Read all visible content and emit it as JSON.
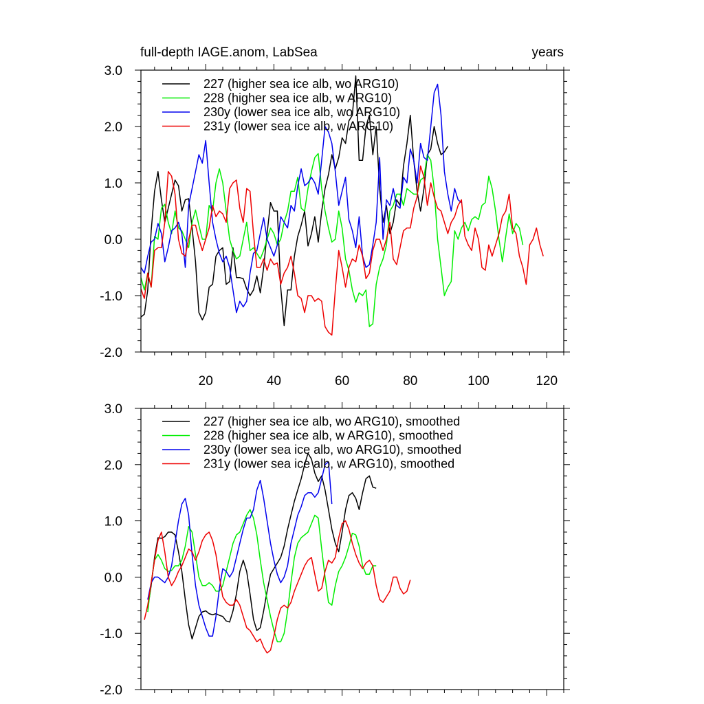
{
  "colors": {
    "s227": "#000000",
    "s228": "#00ee00",
    "s230": "#0000ee",
    "s231": "#ee0000"
  },
  "chart_data": [
    {
      "type": "line",
      "title_left": "full-depth IAGE.anom, LabSea",
      "title_right": "years",
      "xlim": [
        1,
        125
      ],
      "ylim": [
        -2.0,
        3.0
      ],
      "xticks": [
        20,
        40,
        60,
        80,
        100,
        120
      ],
      "xtick_labels": [
        "20",
        "40",
        "60",
        "80",
        "100",
        "120"
      ],
      "yticks": [
        -2,
        -1,
        0,
        1,
        2,
        3
      ],
      "ytick_labels": [
        "-2.0",
        "-1.0",
        "0.0",
        "1.0",
        "2.0",
        "3.0"
      ],
      "series": [
        {
          "name": "227 (higher sea ice alb, wo ARG10)",
          "color_key": "s227",
          "x_start": 1,
          "values": [
            -1.38,
            -1.33,
            -0.9,
            0.15,
            0.85,
            1.2,
            0.7,
            0.3,
            0.55,
            0.8,
            1.05,
            0.95,
            0.5,
            0.7,
            0.72,
            0.2,
            -0.4,
            -1.3,
            -1.43,
            -1.3,
            -0.85,
            -0.8,
            -0.3,
            -0.2,
            -0.15,
            -0.8,
            -0.75,
            -0.15,
            -0.68,
            -0.68,
            -0.7,
            -0.88,
            -1.0,
            -0.9,
            -0.65,
            -0.95,
            -0.5,
            0.1,
            0.65,
            0.5,
            0.5,
            -0.85,
            -1.53,
            -0.9,
            -0.9,
            -0.3,
            0.05,
            0.25,
            0.5,
            -0.12,
            0.1,
            0.4,
            -0.05,
            0.5,
            0.9,
            1.15,
            1.5,
            1.25,
            1.45,
            1.8,
            1.7,
            2.1,
            2.2,
            2.9,
            1.4,
            1.4,
            2.0,
            2.2,
            1.5,
            2.0,
            0.9,
            0.3,
            0.6,
            0.1,
            0.3,
            0.7,
            0.6,
            1.3,
            1.7,
            2.2,
            1.4,
            0.85,
            0.5,
            0.9,
            1.5,
            1.6,
            2.0,
            1.7,
            1.5,
            1.55,
            1.65
          ]
        },
        {
          "name": "228 (higher sea ice alb, w ARG10)",
          "color_key": "s228",
          "x_start": 1,
          "values": [
            -0.68,
            -0.9,
            -0.6,
            -0.85,
            0.05,
            0.0,
            0.55,
            0.62,
            0.3,
            0.1,
            0.5,
            0.2,
            0.15,
            0.0,
            -0.15,
            0.3,
            0.52,
            0.25,
            0.0,
            0.0,
            0.6,
            0.5,
            1.0,
            1.25,
            1.0,
            0.5,
            0.0,
            -0.2,
            -0.35,
            -0.3,
            0.0,
            0.3,
            -0.2,
            -0.15,
            -0.25,
            -0.35,
            -0.2,
            0.0,
            0.2,
            0.1,
            -0.1,
            0.0,
            0.3,
            0.5,
            0.85,
            0.85,
            1.1,
            0.55,
            0.5,
            0.9,
            1.2,
            1.45,
            1.52,
            0.9,
            0.5,
            0.2,
            -0.05,
            0.0,
            0.5,
            0.2,
            -0.35,
            -0.55,
            -0.9,
            -1.12,
            -0.95,
            -1.0,
            -0.9,
            -1.55,
            -1.5,
            -0.8,
            -0.5,
            -0.35,
            -0.1,
            0.5,
            0.6,
            0.8,
            0.8,
            0.6,
            0.9,
            0.85,
            0.8,
            0.8,
            1.05,
            1.1,
            1.5,
            1.4,
            0.9,
            0.0,
            -0.5,
            -1.0,
            -0.85,
            -0.75,
            0.15,
            0.0,
            0.2,
            0.3,
            0.15,
            0.35,
            0.4,
            0.35,
            0.6,
            0.65,
            1.12,
            0.9,
            0.5,
            0.0,
            -0.4,
            0.05,
            0.45,
            0.1,
            0.28,
            0.2,
            -0.1
          ]
        },
        {
          "name": "230y (lower sea ice alb, wo ARG10)",
          "color_key": "s230",
          "x_start": 1,
          "values": [
            -0.5,
            -0.6,
            -0.3,
            -0.05,
            0.0,
            0.28,
            0.1,
            -0.4,
            -0.15,
            0.15,
            0.2,
            0.3,
            0.1,
            -0.5,
            0.6,
            0.9,
            1.2,
            1.5,
            1.35,
            1.75,
            1.0,
            0.3,
            0.0,
            -0.25,
            -0.4,
            -0.3,
            -0.5,
            -0.9,
            -1.3,
            -1.1,
            -1.2,
            -1.1,
            -0.6,
            -0.25,
            -0.2,
            0.1,
            0.38,
            0.0,
            -0.15,
            -0.3,
            -0.1,
            0.4,
            0.3,
            0.2,
            0.6,
            0.5,
            0.95,
            1.25,
            0.95,
            1.0,
            1.1,
            1.0,
            0.8,
            1.4,
            2.0,
            1.9,
            1.7,
            1.2,
            0.6,
            0.85,
            1.1,
            0.35,
            0.15,
            -0.15,
            0.4,
            -0.3,
            -0.5,
            -0.45,
            -0.1,
            0.3,
            1.45,
            0.0,
            0.7,
            0.6,
            0.9,
            0.6,
            0.55,
            1.1,
            1.0,
            1.6,
            1.4,
            1.0,
            1.7,
            1.45,
            1.4,
            2.0,
            2.6,
            2.75,
            2.2,
            1.2,
            0.8,
            0.5,
            0.9,
            0.7,
            0.65
          ]
        },
        {
          "name": "231y (lower sea ice alb, w ARG10)",
          "color_key": "s231",
          "x_start": 1,
          "values": [
            -0.88,
            -1.05,
            -0.6,
            -0.85,
            -0.2,
            -0.15,
            -0.15,
            0.3,
            1.2,
            1.12,
            0.8,
            0.0,
            -0.25,
            -0.3,
            0.0,
            0.25,
            0.25,
            0.0,
            -0.2,
            0.0,
            0.2,
            0.6,
            0.4,
            0.5,
            0.45,
            0.3,
            0.9,
            1.0,
            1.05,
            0.55,
            0.3,
            0.9,
            0.85,
            0.1,
            -0.5,
            -0.5,
            -0.35,
            -0.55,
            -0.35,
            -0.45,
            -0.42,
            -0.8,
            -0.6,
            -0.5,
            -0.3,
            -0.6,
            -1.0,
            -1.05,
            -1.3,
            -1.0,
            -1.0,
            -1.1,
            -1.05,
            -1.1,
            -1.55,
            -1.65,
            -1.7,
            -0.9,
            -0.2,
            -0.5,
            -0.85,
            -0.5,
            -0.35,
            -0.4,
            -0.1,
            -0.3,
            -0.7,
            -0.6,
            -0.2,
            0.0,
            0.0,
            -0.2,
            0.0,
            0.3,
            -0.35,
            -0.45,
            -0.15,
            0.15,
            0.2,
            0.2,
            0.55,
            0.75,
            1.3,
            1.1,
            0.6,
            1.0,
            0.75,
            0.55,
            0.5,
            0.3,
            0.1,
            0.3,
            0.4,
            0.6,
            0.7,
            0.05,
            -0.1,
            -0.2,
            0.2,
            0.0,
            -0.5,
            -0.55,
            -0.1,
            -0.3,
            -0.1,
            0.1,
            0.4,
            0.5,
            0.8,
            0.2,
            0.1,
            -0.3,
            -0.5,
            -0.8,
            -0.1,
            0.0,
            0.2,
            -0.1,
            -0.3
          ]
        }
      ]
    },
    {
      "type": "line",
      "xlim": [
        1,
        125
      ],
      "ylim": [
        -2.0,
        3.0
      ],
      "xticks": [
        20,
        40,
        60,
        80,
        100,
        120
      ],
      "yticks": [
        -2,
        -1,
        0,
        1,
        2,
        3
      ],
      "ytick_labels": [
        "-2.0",
        "-1.0",
        "0.0",
        "1.0",
        "2.0",
        "3.0"
      ],
      "series": [
        {
          "name": "227 (higher sea ice alb, wo ARG10), smoothed",
          "color_key": "s227",
          "x_start": 3,
          "values": [
            -0.55,
            -0.15,
            0.35,
            0.7,
            0.69,
            0.72,
            0.8,
            0.8,
            0.75,
            0.45,
            0.1,
            -0.4,
            -0.85,
            -1.1,
            -0.9,
            -0.7,
            -0.62,
            -0.6,
            -0.65,
            -0.67,
            -0.65,
            -0.68,
            -0.7,
            -0.78,
            -0.8,
            -0.6,
            -0.3,
            0.1,
            0.3,
            0.1,
            -0.3,
            -0.75,
            -0.95,
            -0.9,
            -0.6,
            -0.25,
            0.05,
            0.15,
            0.25,
            0.35,
            0.55,
            0.85,
            1.1,
            1.35,
            1.55,
            1.75,
            2.0,
            2.2,
            2.1,
            1.85,
            1.7,
            1.8,
            1.55,
            1.2,
            0.85,
            0.6,
            0.45,
            0.8,
            1.2,
            1.45,
            1.5,
            1.4,
            1.2,
            1.5,
            1.75,
            1.8,
            1.6,
            1.58
          ]
        },
        {
          "name": "228 (higher sea ice alb, w ARG10), smoothed",
          "color_key": "s228",
          "x_start": 3,
          "values": [
            -0.62,
            -0.1,
            0.3,
            0.4,
            0.3,
            0.15,
            0.1,
            0.12,
            0.2,
            0.2,
            0.3,
            0.55,
            0.9,
            0.8,
            0.4,
            0.0,
            -0.15,
            -0.15,
            -0.1,
            -0.15,
            -0.25,
            -0.25,
            -0.15,
            0.1,
            0.35,
            0.6,
            0.75,
            0.8,
            0.95,
            1.1,
            1.2,
            1.05,
            0.75,
            0.3,
            -0.1,
            -0.4,
            -0.7,
            -0.95,
            -1.15,
            -1.15,
            -1.0,
            -0.6,
            -0.1,
            0.35,
            0.6,
            0.7,
            0.75,
            0.8,
            0.95,
            1.1,
            1.05,
            0.5,
            0.0,
            -0.45,
            -0.5,
            -0.15,
            0.1,
            0.2,
            0.35,
            0.55,
            0.78,
            0.75,
            0.55,
            0.2,
            0.05,
            0.05,
            0.2,
            0.2
          ]
        },
        {
          "name": "230y (lower sea ice alb, wo ARG10), smoothed",
          "color_key": "s230",
          "x_start": 3,
          "values": [
            -0.4,
            -0.1,
            0.0,
            0.0,
            -0.05,
            -0.1,
            0.0,
            0.2,
            0.6,
            1.0,
            1.3,
            1.4,
            1.1,
            0.4,
            -0.15,
            -0.5,
            -0.7,
            -0.9,
            -1.05,
            -1.05,
            -0.7,
            -0.2,
            0.15,
            0.1,
            0.0,
            0.1,
            0.35,
            0.6,
            0.85,
            1.05,
            1.05,
            1.2,
            1.55,
            1.72,
            1.4,
            1.0,
            0.6,
            0.3,
            0.05,
            -0.1,
            0.0,
            0.2,
            0.6,
            0.85,
            1.1,
            1.25,
            1.45,
            1.5,
            1.5,
            1.42,
            1.5,
            1.75,
            2.0,
            2.05,
            1.3
          ]
        },
        {
          "name": "231y (lower sea ice alb, w ARG10), smoothed",
          "color_key": "s231",
          "x_start": 2,
          "values": [
            -0.76,
            -0.5,
            -0.1,
            0.3,
            0.65,
            0.8,
            0.45,
            0.0,
            -0.15,
            -0.05,
            0.1,
            0.2,
            0.35,
            0.5,
            0.45,
            0.3,
            0.45,
            0.65,
            0.75,
            0.8,
            0.65,
            0.4,
            0.0,
            -0.35,
            -0.45,
            -0.5,
            -0.5,
            -0.4,
            -0.5,
            -0.7,
            -0.9,
            -0.95,
            -1.05,
            -1.15,
            -1.1,
            -1.25,
            -1.35,
            -1.3,
            -1.05,
            -0.75,
            -0.55,
            -0.5,
            -0.55,
            -0.45,
            -0.25,
            -0.1,
            0.05,
            0.2,
            0.3,
            0.35,
            0.05,
            -0.25,
            -0.2,
            0.1,
            0.3,
            0.25,
            0.35,
            0.7,
            0.95,
            1.0,
            0.85,
            0.6,
            0.4,
            0.25,
            0.15,
            0.25,
            0.3,
            0.2,
            -0.15,
            -0.4,
            -0.45,
            -0.35,
            -0.25,
            0.0,
            0.0,
            -0.2,
            -0.3,
            -0.25,
            -0.05
          ]
        }
      ]
    }
  ]
}
